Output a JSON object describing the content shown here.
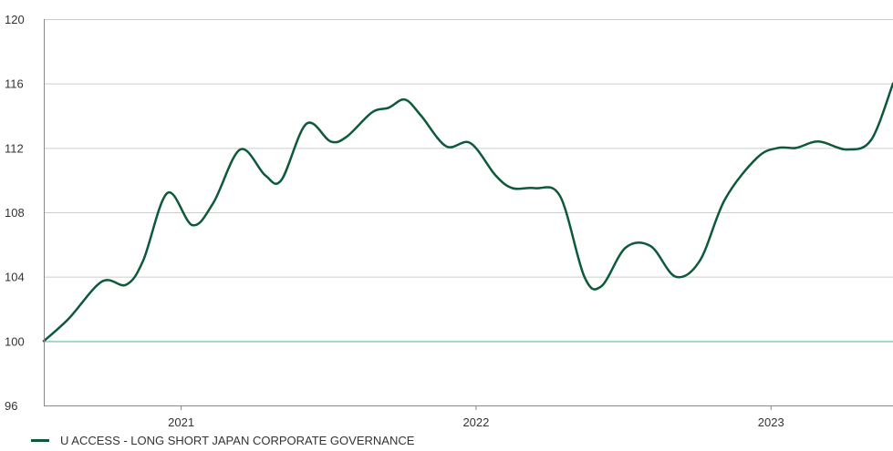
{
  "chart_data": {
    "type": "line",
    "title": "",
    "xlabel": "",
    "ylabel": "",
    "ylim": [
      96,
      120
    ],
    "yticks": [
      96,
      100,
      104,
      108,
      112,
      116,
      120
    ],
    "xlim": [
      "2020-07-15",
      "2023-06-01"
    ],
    "xticks": [
      {
        "label": "2021",
        "date": "2021-01-01"
      },
      {
        "label": "2022",
        "date": "2022-01-01"
      },
      {
        "label": "2023",
        "date": "2023-01-01"
      }
    ],
    "grid": true,
    "baseline": 100,
    "legend_position": "bottom-left",
    "series": [
      {
        "name": "U ACCESS - LONG SHORT JAPAN CORPORATE GOVERNANCE",
        "color": "#0d5a3a",
        "points": [
          {
            "date": "2020-07-15",
            "value": 100.0
          },
          {
            "date": "2020-08-15",
            "value": 101.4
          },
          {
            "date": "2020-09-25",
            "value": 103.7
          },
          {
            "date": "2020-10-25",
            "value": 103.5
          },
          {
            "date": "2020-11-15",
            "value": 105.0
          },
          {
            "date": "2020-12-15",
            "value": 109.2
          },
          {
            "date": "2021-01-15",
            "value": 107.2
          },
          {
            "date": "2021-02-10",
            "value": 108.6
          },
          {
            "date": "2021-03-15",
            "value": 111.9
          },
          {
            "date": "2021-04-15",
            "value": 110.3
          },
          {
            "date": "2021-05-05",
            "value": 110.0
          },
          {
            "date": "2021-06-05",
            "value": 113.5
          },
          {
            "date": "2021-07-05",
            "value": 112.4
          },
          {
            "date": "2021-07-25",
            "value": 112.7
          },
          {
            "date": "2021-08-25",
            "value": 114.2
          },
          {
            "date": "2021-09-15",
            "value": 114.5
          },
          {
            "date": "2021-10-05",
            "value": 115.0
          },
          {
            "date": "2021-10-25",
            "value": 114.0
          },
          {
            "date": "2021-11-25",
            "value": 112.1
          },
          {
            "date": "2021-12-25",
            "value": 112.3
          },
          {
            "date": "2022-01-25",
            "value": 110.3
          },
          {
            "date": "2022-02-15",
            "value": 109.5
          },
          {
            "date": "2022-03-15",
            "value": 109.5
          },
          {
            "date": "2022-04-15",
            "value": 109.0
          },
          {
            "date": "2022-05-15",
            "value": 104.0
          },
          {
            "date": "2022-06-05",
            "value": 103.4
          },
          {
            "date": "2022-07-05",
            "value": 105.8
          },
          {
            "date": "2022-08-05",
            "value": 105.9
          },
          {
            "date": "2022-09-05",
            "value": 104.0
          },
          {
            "date": "2022-10-05",
            "value": 105.0
          },
          {
            "date": "2022-11-05",
            "value": 108.8
          },
          {
            "date": "2022-12-15",
            "value": 111.4
          },
          {
            "date": "2023-01-10",
            "value": 112.0
          },
          {
            "date": "2023-02-01",
            "value": 112.0
          },
          {
            "date": "2023-03-01",
            "value": 112.4
          },
          {
            "date": "2023-04-05",
            "value": 111.9
          },
          {
            "date": "2023-05-05",
            "value": 112.5
          },
          {
            "date": "2023-06-01",
            "value": 116.0
          }
        ]
      }
    ]
  },
  "colors": {
    "series": "#0d5a3a",
    "grid": "#cccccc",
    "baseline": "#a8d5c4",
    "axis": "#888888",
    "text": "#333333"
  }
}
